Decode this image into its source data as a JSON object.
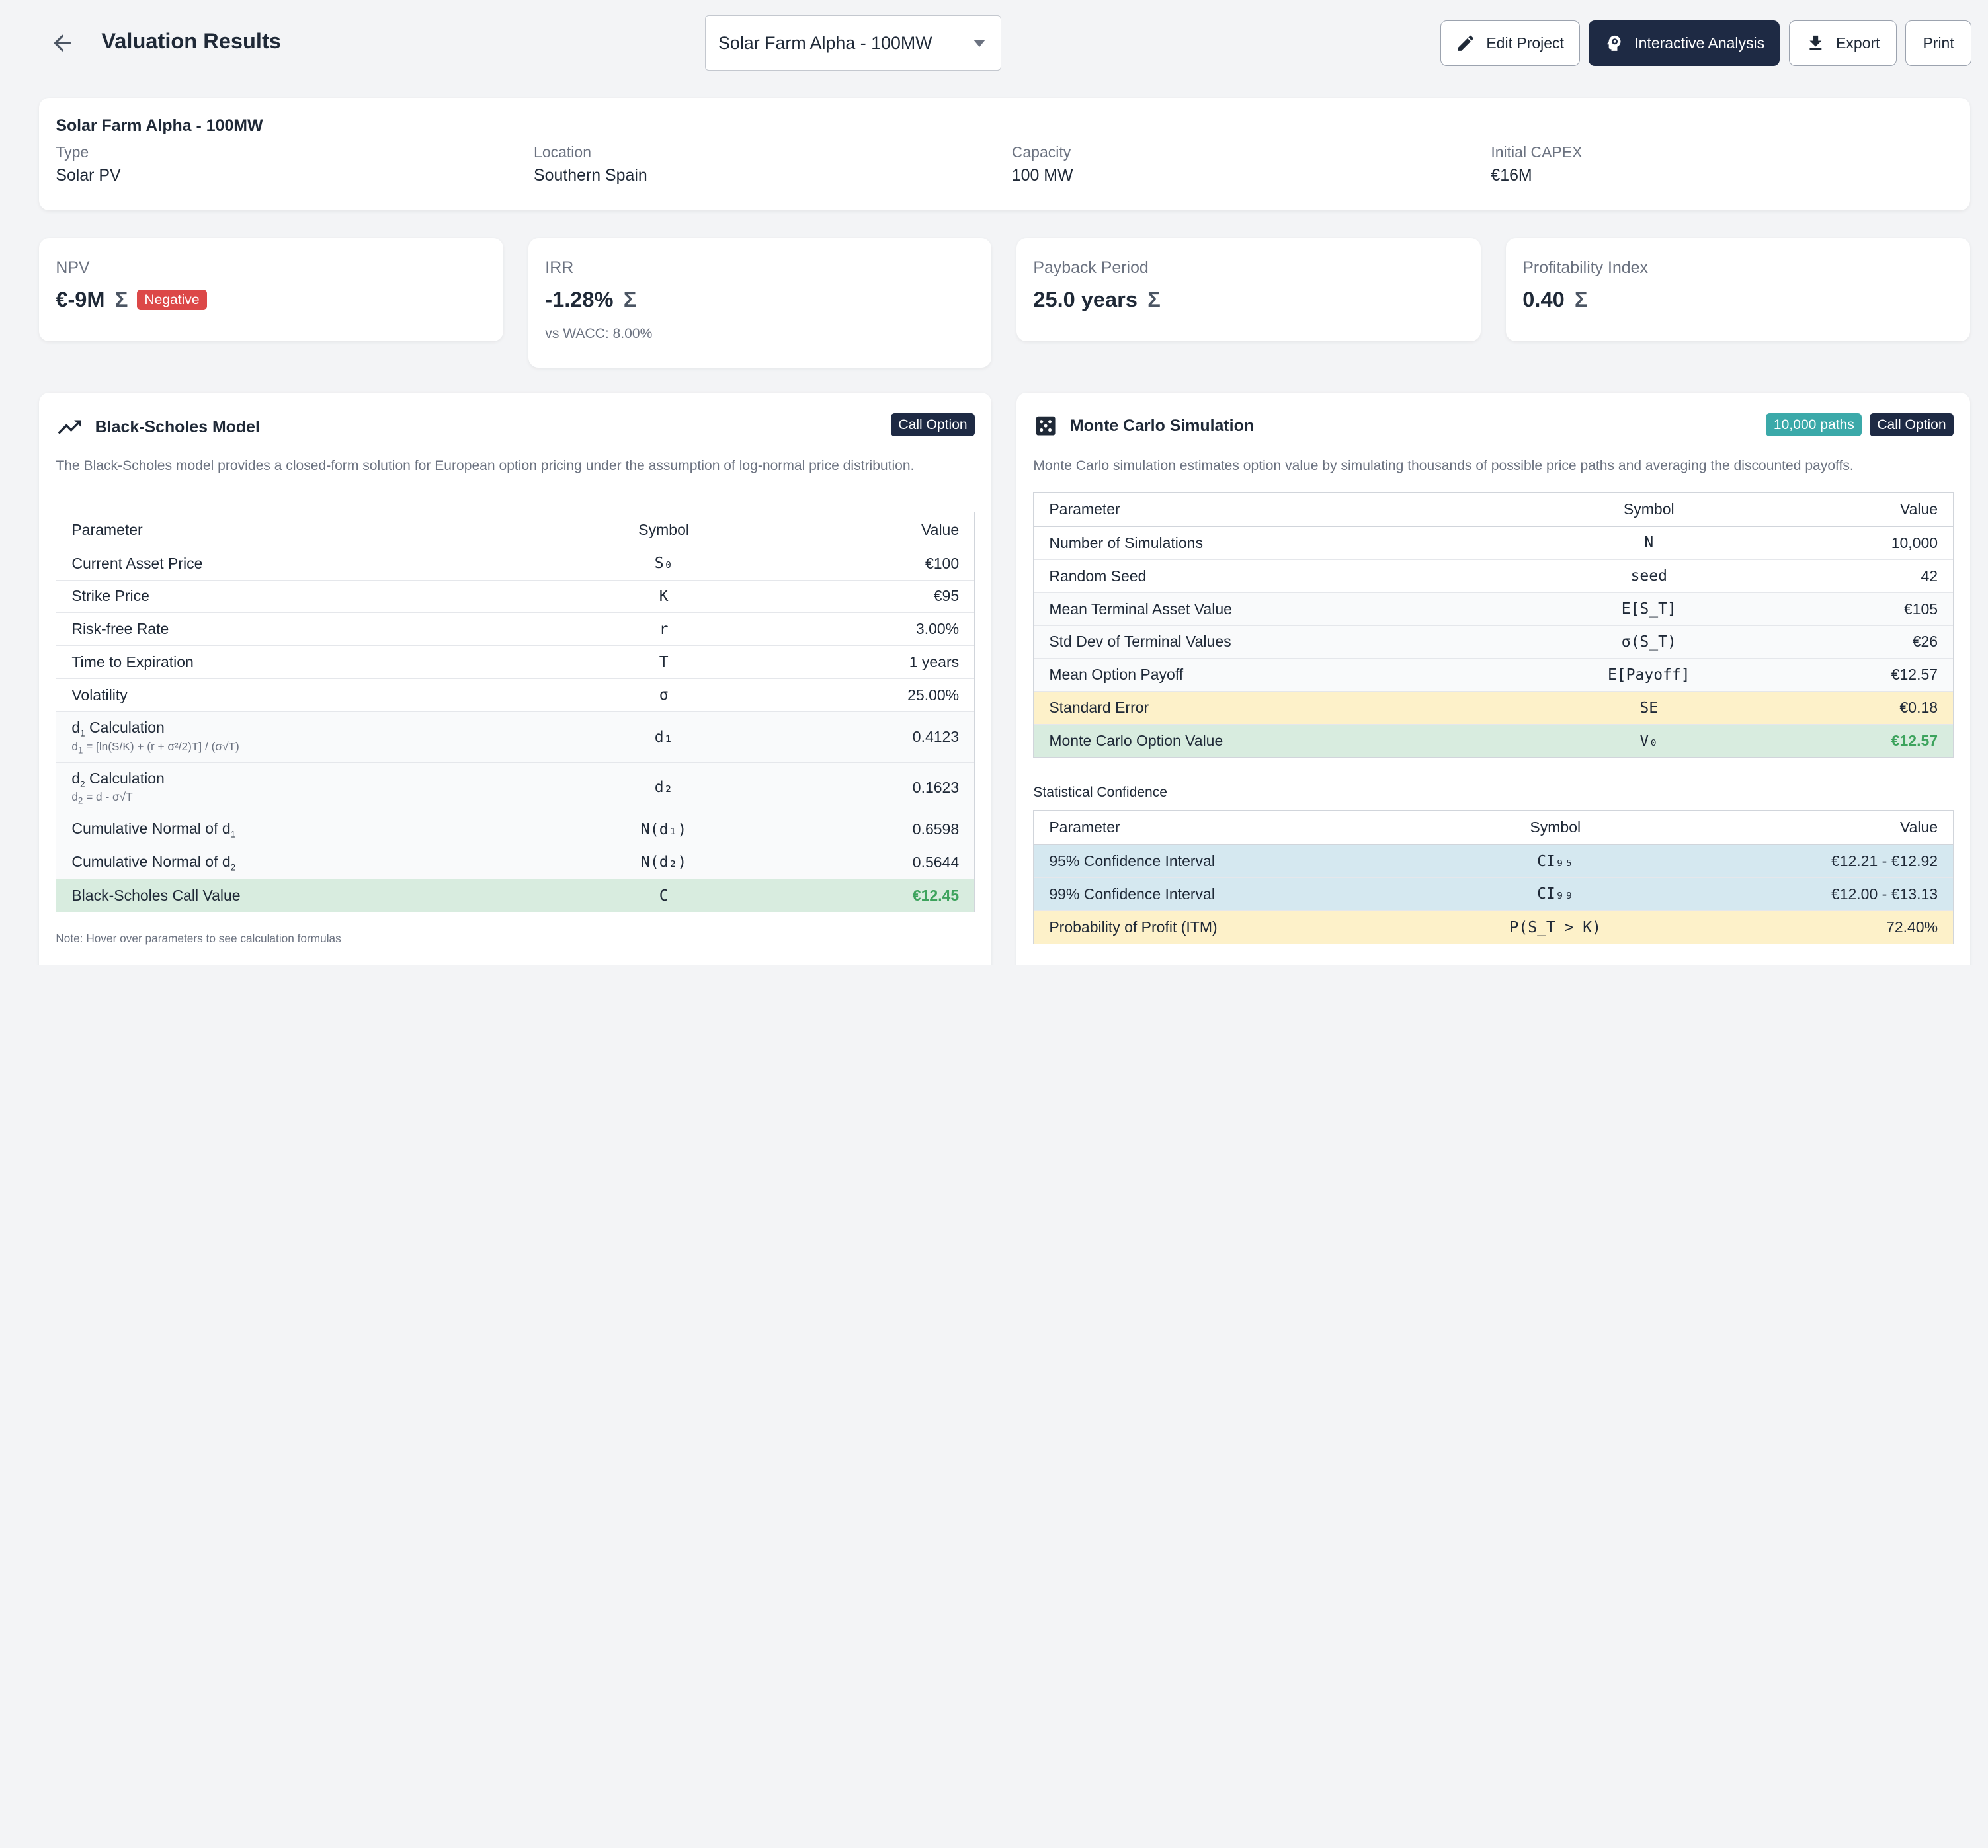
{
  "header": {
    "title": "Valuation Results",
    "project_select": "Solar Farm Alpha - 100MW",
    "buttons": {
      "edit": "Edit Project",
      "interactive": "Interactive Analysis",
      "export": "Export",
      "print": "Print"
    }
  },
  "project": {
    "name": "Solar Farm Alpha - 100MW",
    "fields": [
      {
        "label": "Type",
        "value": "Solar PV"
      },
      {
        "label": "Location",
        "value": "Southern Spain"
      },
      {
        "label": "Capacity",
        "value": "100 MW"
      },
      {
        "label": "Initial CAPEX",
        "value": "€16M"
      }
    ]
  },
  "metrics": {
    "npv": {
      "label": "NPV",
      "value": "€-9M",
      "badge": "Negative"
    },
    "irr": {
      "label": "IRR",
      "value": "-1.28%",
      "sub": "vs WACC: 8.00%"
    },
    "payback": {
      "label": "Payback Period",
      "value": "25.0 years"
    },
    "pi": {
      "label": "Profitability Index",
      "value": "0.40"
    }
  },
  "black_scholes": {
    "title": "Black-Scholes Model",
    "badge": "Call Option",
    "description": "The Black-Scholes model provides a closed-form solution for European option pricing under the assumption of log-normal price distribution.",
    "headers": {
      "param": "Parameter",
      "symbol": "Symbol",
      "value": "Value"
    },
    "rows": [
      {
        "param": "Current Asset Price",
        "symbol": "S₀",
        "value": "€100"
      },
      {
        "param": "Strike Price",
        "symbol": "K",
        "value": "€95"
      },
      {
        "param": "Risk-free Rate",
        "symbol": "r",
        "value": "3.00%"
      },
      {
        "param": "Time to Expiration",
        "symbol": "T",
        "value": "1 years"
      },
      {
        "param": "Volatility",
        "symbol": "σ",
        "value": "25.00%"
      },
      {
        "param": "Calculation",
        "formula": "= [ln(S/K) + (r + σ²/2)T] / (σ√T)",
        "symbol": "d₁",
        "value": "0.4123"
      },
      {
        "param": "Calculation",
        "formula": "= d - σ√T",
        "symbol": "d₂",
        "value": "0.1623"
      },
      {
        "param": "Cumulative Normal of d",
        "symbol": "N(d₁)",
        "value": "0.6598"
      },
      {
        "param": "Cumulative Normal of d",
        "symbol": "N(d₂)",
        "value": "0.5644"
      },
      {
        "param": "Black-Scholes Call Value",
        "symbol": "C",
        "value": "€12.45"
      }
    ],
    "note": "Note: Hover over parameters to see calculation formulas"
  },
  "monte_carlo": {
    "title": "Monte Carlo Simulation",
    "badges": [
      "10,000 paths",
      "Call Option"
    ],
    "description": "Monte Carlo simulation estimates option value by simulating thousands of possible price paths and averaging the discounted payoffs.",
    "headers": {
      "param": "Parameter",
      "symbol": "Symbol",
      "value": "Value"
    },
    "rows": [
      {
        "param": "Number of Simulations",
        "symbol": "N",
        "value": "10,000"
      },
      {
        "param": "Random Seed",
        "symbol": "seed",
        "value": "42"
      },
      {
        "param": "Mean Terminal Asset Value",
        "symbol": "E[S_T]",
        "value": "€105"
      },
      {
        "param": "Std Dev of Terminal Values",
        "symbol": "σ(S_T)",
        "value": "€26"
      },
      {
        "param": "Mean Option Payoff",
        "symbol": "E[Payoff]",
        "value": "€12.57"
      },
      {
        "param": "Standard Error",
        "symbol": "SE",
        "value": "€0.18"
      },
      {
        "param": "Monte Carlo Option Value",
        "symbol": "V₀",
        "value": "€12.57"
      }
    ],
    "confidence_title": "Statistical Confidence",
    "confidence_rows": [
      {
        "param": "95% Confidence Interval",
        "symbol": "CI₉₅",
        "value": "€12.21 - €12.92"
      },
      {
        "param": "99% Confidence Interval",
        "symbol": "CI₉₉",
        "value": "€12.00 - €13.13"
      },
      {
        "param": "Probability of Profit (ITM)",
        "symbol": "P(S_T > K)",
        "value": "72.40%"
      }
    ]
  },
  "colors": {
    "dark": "#1e2a44",
    "teal": "#3ba9a9",
    "negative": "#dc4848",
    "positive": "#3da35d"
  }
}
